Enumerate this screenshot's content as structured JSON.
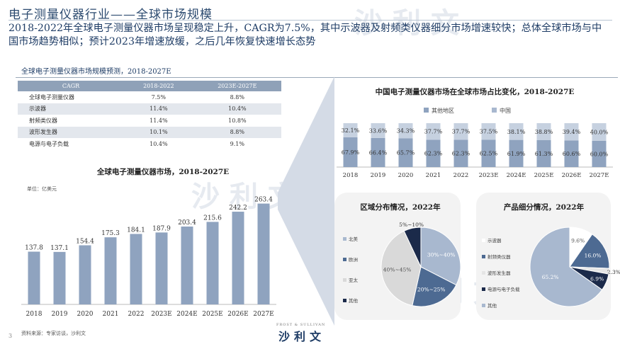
{
  "page": {
    "title": "电子测量仪器行业——全球市场规模",
    "headline": "2018-2022年全球电子测量仪器市场呈现稳定上升，CAGR为7.5%，其中示波器及射频类仪器细分市场增速较快；总体全球市场与中国市场趋势相似；预计2023年增速放缓，之后几年恢复快速增长态势",
    "sub_label": "全球电子测量仪器市场规模预测，2018-2027E",
    "source": "资料来源：专家访谈，沙利文",
    "page_number": "3",
    "brand": "沙利文",
    "brand_sub": "FROST & SULLIVAN",
    "watermark": "沙利文"
  },
  "cagr_table": {
    "headers": [
      "CAGR",
      "2018-2022",
      "2023E-2027E"
    ],
    "rows": [
      [
        "全球电子测量仪器",
        "7.5%",
        "8.8%"
      ],
      [
        "示波器",
        "11.4%",
        "10.4%"
      ],
      [
        "射频类仪器",
        "11.4%",
        "10.8%"
      ],
      [
        "波形发生器",
        "10.1%",
        "8.8%"
      ],
      [
        "电源与电子负载",
        "10.4%",
        "9.1%"
      ]
    ]
  },
  "colors": {
    "bar": "#8fa3bf",
    "dark_navy": "#1b2a4a",
    "mid_blue": "#4d6a92",
    "light_blue": "#a8b8cf",
    "gray": "#d9d9d9",
    "text_blue": "#1f3d66"
  },
  "chart_data": [
    {
      "type": "bar",
      "title": "全球电子测量仪器市场，2018-2027E",
      "unit": "单位：亿美元",
      "categories": [
        "2018",
        "2019",
        "2020",
        "2021",
        "2022",
        "2023E",
        "2024E",
        "2025E",
        "2026E",
        "2027E"
      ],
      "values": [
        137.8,
        137.1,
        154.4,
        175.3,
        184.1,
        187.9,
        203.4,
        215.6,
        242.2,
        263.4
      ],
      "value_labels": [
        "137.8",
        "137.1",
        "154.4",
        "175.3",
        "184.1",
        "187.9",
        "203.4",
        "215.6",
        "242.2",
        "263.4"
      ],
      "ylim": [
        0,
        270
      ]
    },
    {
      "type": "bar",
      "stacked": true,
      "title": "中国电子测量仪器市场在全球市场占比变化，2018-2027E",
      "categories": [
        "2018",
        "2019",
        "2020",
        "2021",
        "2022",
        "2023E",
        "2024E",
        "2025E",
        "2026E",
        "2027E"
      ],
      "legend": [
        "其他地区",
        "中国"
      ],
      "series": [
        {
          "name": "其他地区",
          "values": [
            67.9,
            66.4,
            65.7,
            62.3,
            62.3,
            62.5,
            61.9,
            61.3,
            60.6,
            60.0
          ],
          "labels": [
            "67.9%",
            "66.4%",
            "65.7%",
            "62.3%",
            "62.3%",
            "62.5%",
            "61.9%",
            "61.3%",
            "60.6%",
            "60.0%"
          ]
        },
        {
          "name": "中国",
          "values": [
            32.1,
            33.6,
            34.3,
            37.7,
            37.7,
            37.5,
            38.1,
            38.8,
            39.4,
            40.0
          ],
          "labels": [
            "32.1%",
            "33.6%",
            "34.3%",
            "37.7%",
            "37.7%",
            "37.5%",
            "38.1%",
            "38.8%",
            "39.4%",
            "40.0%"
          ]
        }
      ],
      "ylim": [
        0,
        100
      ]
    },
    {
      "type": "pie",
      "title": "区域分布情况，2022年",
      "legend": [
        "北美",
        "欧洲",
        "亚太",
        "其他"
      ],
      "slices": [
        {
          "name": "北美",
          "value": 35,
          "label": "30%~40%"
        },
        {
          "name": "欧洲",
          "value": 22.5,
          "label": "20%~25%"
        },
        {
          "name": "亚太",
          "value": 42.5,
          "label": "40%~45%"
        },
        {
          "name": "其他",
          "value": 7.5,
          "label": "5%~10%"
        }
      ]
    },
    {
      "type": "pie",
      "title": "产品细分情况，2022年",
      "legend": [
        "示波器",
        "射频类仪器",
        "波形发生器",
        "电源与电子负载",
        "其他"
      ],
      "slices": [
        {
          "name": "示波器",
          "value": 9.6,
          "label": "9.6%"
        },
        {
          "name": "射频类仪器",
          "value": 16.0,
          "label": "16.0%"
        },
        {
          "name": "波形发生器",
          "value": 2.3,
          "label": "2.3%"
        },
        {
          "name": "电源与电子负载",
          "value": 6.9,
          "label": "6.9%"
        },
        {
          "name": "其他",
          "value": 65.2,
          "label": "65.2%"
        }
      ]
    }
  ]
}
